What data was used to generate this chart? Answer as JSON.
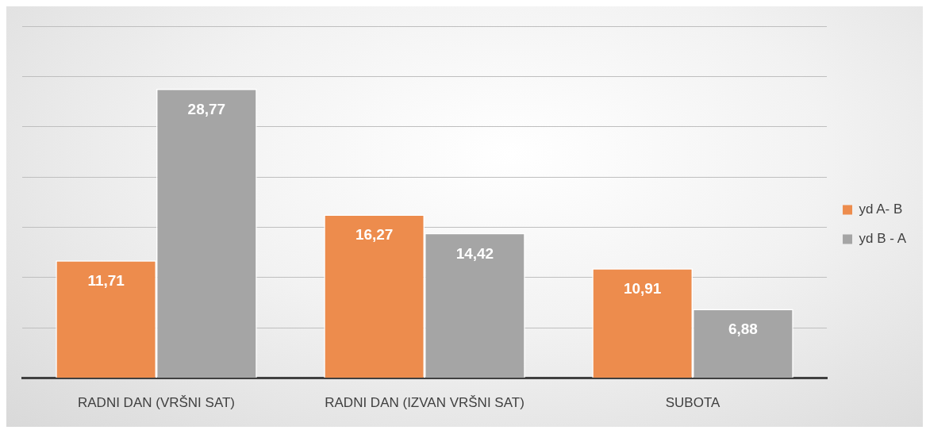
{
  "chart_data": {
    "type": "bar",
    "categories": [
      "RADNI DAN (VRŠNI SAT)",
      "RADNI DAN (IZVAN VRŠNI SAT)",
      "SUBOTA"
    ],
    "series": [
      {
        "name": "yd A- B",
        "color": "#ed8c4d",
        "values": [
          11.71,
          16.27,
          10.91
        ],
        "value_labels": [
          "11,71",
          "16,27",
          "10,91"
        ]
      },
      {
        "name": "yd B - A",
        "color": "#a5a5a5",
        "values": [
          28.77,
          14.42,
          6.88
        ],
        "value_labels": [
          "28,77",
          "14,42",
          "6,88"
        ]
      }
    ],
    "tick_labels": "x",
    "grid": "y",
    "legend": "right"
  }
}
